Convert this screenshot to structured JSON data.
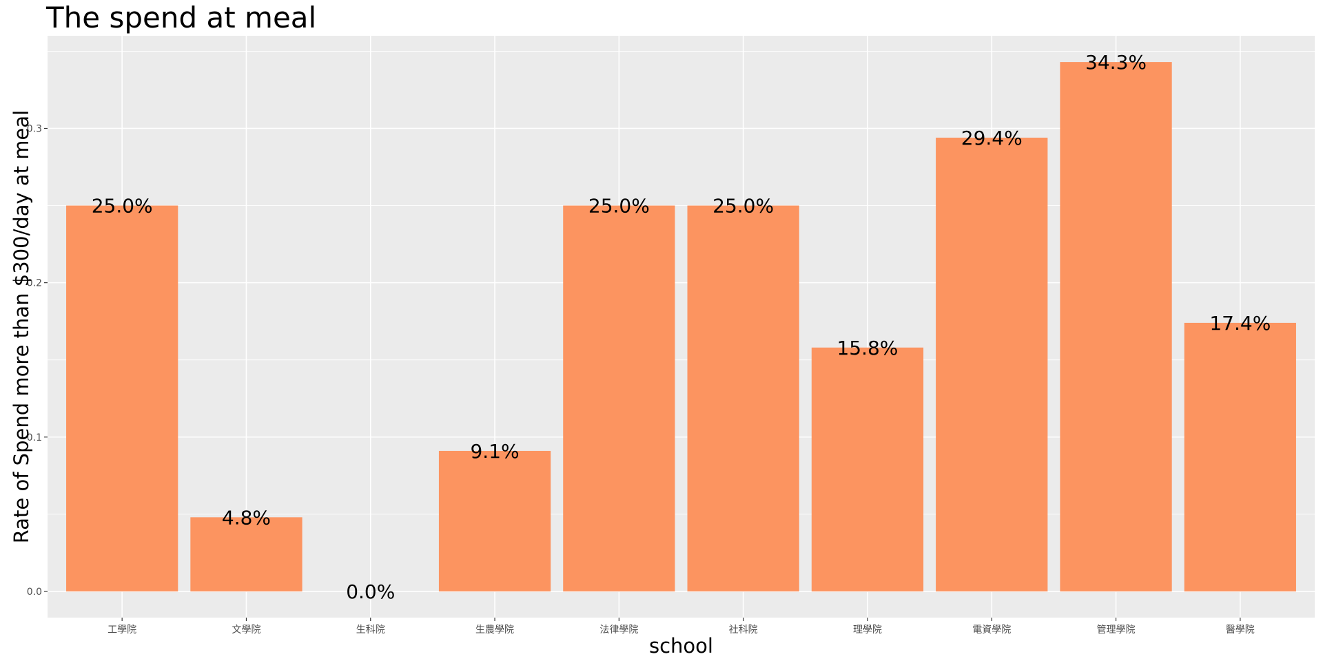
{
  "chart_data": {
    "type": "bar",
    "title": "The spend at meal",
    "xlabel": "school",
    "ylabel": "Rate of Spend more than $300/day at meal",
    "categories": [
      "工學院",
      "文學院",
      "生科院",
      "生農學院",
      "法律學院",
      "社科院",
      "理學院",
      "電資學院",
      "管理學院",
      "醫學院"
    ],
    "values": [
      0.25,
      0.048,
      0.0,
      0.091,
      0.25,
      0.25,
      0.158,
      0.294,
      0.343,
      0.174
    ],
    "labels": [
      "25.0%",
      "4.8%",
      "0.0%",
      "9.1%",
      "25.0%",
      "25.0%",
      "15.8%",
      "29.4%",
      "34.3%",
      "17.4%"
    ],
    "ylim": [
      -0.017,
      0.36
    ],
    "yticks": [
      0.0,
      0.1,
      0.2,
      0.3
    ],
    "ytick_labels": [
      "0.0",
      "0.1",
      "0.2",
      "0.3"
    ],
    "grid": true,
    "legend": "none",
    "colors": {
      "bar": "#FC9460",
      "panel": "#EBEBEB",
      "grid_major": "#FFFFFF",
      "background": "#FFFFFF",
      "tick_text": "#4D4D4D"
    }
  }
}
